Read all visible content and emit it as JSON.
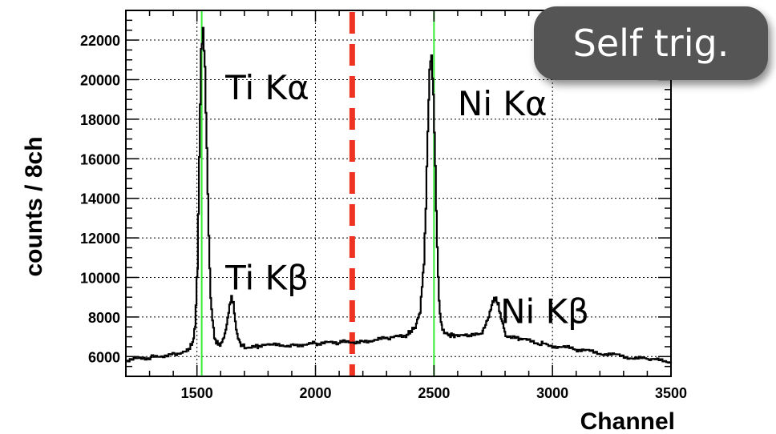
{
  "badge": {
    "text": "Self trig."
  },
  "chart_data": {
    "type": "line",
    "xlabel": "Channel",
    "ylabel": "counts / 8ch",
    "xlim": [
      1200,
      3500
    ],
    "ylim": [
      5000,
      23500
    ],
    "xticks": [
      1500,
      2000,
      2500,
      3000,
      3500
    ],
    "yticks": [
      6000,
      8000,
      10000,
      12000,
      14000,
      16000,
      18000,
      20000,
      22000
    ],
    "grid": true,
    "series": [
      {
        "color": "#000000",
        "step": true,
        "x": [
          1200,
          1300,
          1400,
          1460,
          1480,
          1490,
          1500,
          1508,
          1516,
          1524,
          1532,
          1540,
          1548,
          1556,
          1564,
          1572,
          1580,
          1600,
          1620,
          1632,
          1644,
          1652,
          1660,
          1672,
          1684,
          1700,
          1750,
          1800,
          1900,
          2000,
          2100,
          2200,
          2300,
          2380,
          2420,
          2440,
          2456,
          2464,
          2472,
          2480,
          2488,
          2496,
          2504,
          2512,
          2520,
          2530,
          2545,
          2560,
          2600,
          2650,
          2700,
          2730,
          2745,
          2760,
          2770,
          2785,
          2800,
          2850,
          2950,
          3100,
          3300,
          3400,
          3500
        ],
        "values": [
          5800,
          5950,
          6150,
          6300,
          6700,
          7500,
          10500,
          16000,
          21500,
          22500,
          20500,
          16500,
          12000,
          9000,
          7800,
          7000,
          6700,
          6600,
          7300,
          8300,
          9000,
          8700,
          7700,
          6900,
          6600,
          6500,
          6500,
          6550,
          6600,
          6650,
          6700,
          6800,
          6900,
          7050,
          7500,
          8300,
          10800,
          13500,
          17500,
          20500,
          21200,
          19200,
          15500,
          11500,
          8700,
          7500,
          7200,
          7100,
          7050,
          7000,
          7200,
          8000,
          8800,
          8900,
          8600,
          7800,
          7100,
          6900,
          6650,
          6350,
          6000,
          5850,
          5750
        ]
      }
    ],
    "vertical_lines": [
      {
        "x": 1520,
        "color": "#33ee33",
        "style": "solid"
      },
      {
        "x": 2500,
        "color": "#33ee33",
        "style": "solid"
      },
      {
        "x": 2155,
        "color": "#ee3322",
        "style": "dashed"
      }
    ],
    "annotations": [
      {
        "text": "Ti Kα",
        "x": 1620,
        "y": 19000
      },
      {
        "text": "Ti Kβ",
        "x": 1620,
        "y": 9400
      },
      {
        "text": "Ni Kα",
        "x": 2600,
        "y": 18200
      },
      {
        "text": "Ni Kβ",
        "x": 2780,
        "y": 7700
      }
    ]
  }
}
